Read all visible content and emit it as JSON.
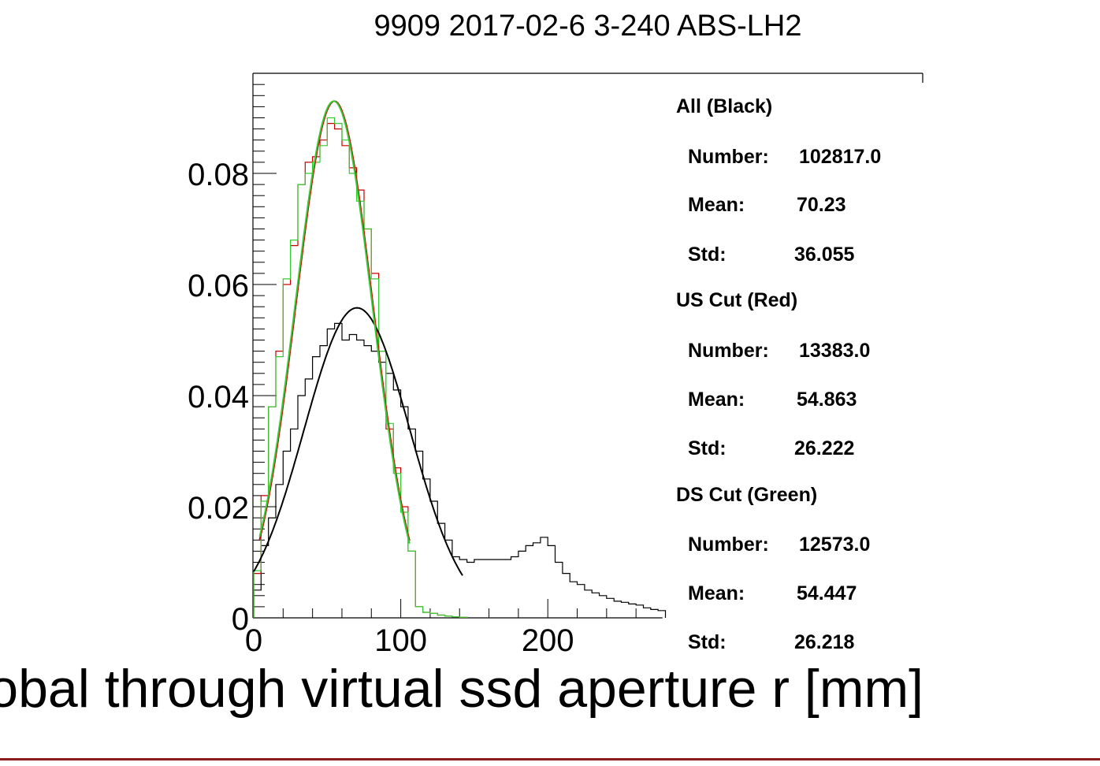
{
  "chart_data": {
    "type": "histogram",
    "title": "9909 2017-02-6 3-240 ABS-LH2",
    "xlabel": "Global through virtual ssd aperture r [mm]",
    "ylabel": "",
    "xlim": [
      0,
      278
    ],
    "ylim": [
      0,
      0.0975
    ],
    "x_ticks": [
      0,
      100,
      200
    ],
    "y_ticks": [
      0,
      0.02,
      0.04,
      0.06,
      0.08
    ],
    "x_tick_labels": [
      "0",
      "100",
      "200"
    ],
    "y_tick_labels": [
      "0",
      "0.02",
      "0.04",
      "0.06",
      "0.08"
    ],
    "bin_width": 5,
    "series": [
      {
        "color": "#000000",
        "x": [
          0,
          5,
          10,
          15,
          20,
          25,
          30,
          35,
          40,
          45,
          50,
          55,
          60,
          65,
          70,
          75,
          80,
          85,
          90,
          95,
          100,
          105,
          110,
          115,
          120,
          125,
          130,
          135,
          140,
          145,
          150,
          155,
          160,
          165,
          170,
          175,
          180,
          185,
          190,
          195,
          200,
          205,
          210,
          215,
          220,
          225,
          230,
          235,
          240,
          245,
          250,
          255,
          260,
          265,
          270,
          275
        ],
        "values": [
          0.005,
          0.013,
          0.018,
          0.024,
          0.03,
          0.034,
          0.04,
          0.043,
          0.047,
          0.049,
          0.052,
          0.053,
          0.05,
          0.051,
          0.05,
          0.049,
          0.048,
          0.046,
          0.044,
          0.041,
          0.038,
          0.034,
          0.03,
          0.025,
          0.021,
          0.017,
          0.014,
          0.011,
          0.0105,
          0.01,
          0.0105,
          0.0105,
          0.0105,
          0.0105,
          0.0105,
          0.011,
          0.012,
          0.013,
          0.0135,
          0.0145,
          0.013,
          0.01,
          0.008,
          0.0065,
          0.006,
          0.005,
          0.0045,
          0.004,
          0.0035,
          0.003,
          0.0028,
          0.0025,
          0.0023,
          0.0018,
          0.0015,
          0.0013
        ]
      },
      {
        "color": "#cc0000",
        "x": [
          0,
          5,
          10,
          15,
          20,
          25,
          30,
          35,
          40,
          45,
          50,
          55,
          60,
          65,
          70,
          75,
          80,
          85,
          90,
          95,
          100,
          105,
          110,
          115,
          120,
          125,
          130,
          135,
          140
        ],
        "values": [
          0.008,
          0.022,
          0.038,
          0.048,
          0.06,
          0.067,
          0.078,
          0.082,
          0.083,
          0.086,
          0.089,
          0.088,
          0.085,
          0.081,
          0.077,
          0.07,
          0.062,
          0.048,
          0.034,
          0.027,
          0.02,
          0.012,
          0.002,
          0.001,
          0.0008,
          0.0005,
          0.0003,
          0.0002,
          0.0001
        ]
      },
      {
        "color": "#33cc33",
        "x": [
          0,
          5,
          10,
          15,
          20,
          25,
          30,
          35,
          40,
          45,
          50,
          55,
          60,
          65,
          70,
          75,
          80,
          85,
          90,
          95,
          100,
          105,
          110,
          115,
          120,
          125,
          130,
          135,
          140
        ],
        "values": [
          0.0085,
          0.021,
          0.038,
          0.047,
          0.061,
          0.068,
          0.078,
          0.08,
          0.082,
          0.085,
          0.09,
          0.089,
          0.086,
          0.08,
          0.075,
          0.07,
          0.061,
          0.048,
          0.035,
          0.026,
          0.019,
          0.012,
          0.002,
          0.001,
          0.0008,
          0.0005,
          0.0003,
          0.0002,
          0.0001
        ]
      }
    ],
    "fits": [
      {
        "color": "#000000",
        "amplitude": 0.0558,
        "mean": 70.2,
        "sigma": 36.0,
        "xmin": 0,
        "xmax": 142
      },
      {
        "color": "#cc0000",
        "amplitude": 0.093,
        "mean": 54.9,
        "sigma": 26.2,
        "xmin": 4,
        "xmax": 106
      },
      {
        "color": "#33cc33",
        "amplitude": 0.093,
        "mean": 54.4,
        "sigma": 26.2,
        "xmin": 4,
        "xmax": 106
      }
    ]
  },
  "stats": {
    "all": {
      "header": "All (Black)",
      "number_label": "Number:",
      "number": "102817.0",
      "mean_label": "Mean:",
      "mean": "70.23",
      "std_label": "Std:",
      "std": "36.055"
    },
    "us": {
      "header": "US Cut (Red)",
      "number_label": "Number:",
      "number": "13383.0",
      "mean_label": "Mean:",
      "mean": "54.863",
      "std_label": "Std:",
      "std": "26.222"
    },
    "ds": {
      "header": "DS Cut (Green)",
      "number_label": "Number:",
      "number": "12573.0",
      "mean_label": "Mean:",
      "mean": "54.447",
      "std_label": "Std:",
      "std": "26.218"
    }
  }
}
